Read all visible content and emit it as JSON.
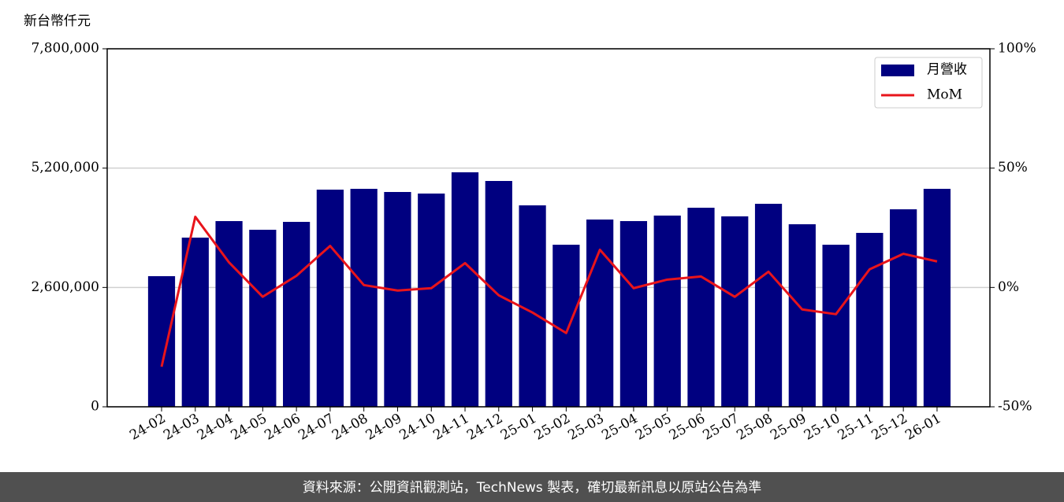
{
  "chart_data": {
    "type": "bar_line",
    "ylabel": "新台幣仟元",
    "footer": "資料來源：公開資訊觀測站，TechNews 製表，確切最新訊息以原站公告為準",
    "categories": [
      "24-02",
      "24-03",
      "24-04",
      "24-05",
      "24-06",
      "24-07",
      "24-08",
      "24-09",
      "24-10",
      "24-11",
      "24-12",
      "25-01",
      "25-02",
      "25-03",
      "25-04",
      "25-05",
      "25-06",
      "25-07",
      "25-08",
      "25-09",
      "25-10",
      "25-11",
      "25-12",
      "26-01"
    ],
    "series": [
      {
        "name": "月營收",
        "type": "bar",
        "color": "#000080",
        "values": [
          2846000,
          3686000,
          4046000,
          3857000,
          4029000,
          4731000,
          4749000,
          4680000,
          4646000,
          5109000,
          4920000,
          4389000,
          3531000,
          4080000,
          4046000,
          4166000,
          4337000,
          4149000,
          4423000,
          3977000,
          3531000,
          3789000,
          4303000,
          4749000
        ]
      },
      {
        "name": "MoM",
        "type": "line",
        "axis": "y2",
        "color": "#e8141b",
        "values": [
          -33.2,
          29.6,
          10.5,
          -3.9,
          4.9,
          17.4,
          1.0,
          -1.3,
          -0.3,
          10.2,
          -3.3,
          -10.5,
          -19.1,
          15.8,
          -0.3,
          3.3,
          4.6,
          -3.9,
          6.6,
          -9.2,
          -11.2,
          7.6,
          14.1,
          10.9
        ]
      }
    ],
    "ylim": [
      0,
      7800000
    ],
    "yticks": [
      0,
      {
        "value": 2600000,
        "label": "2,600,000"
      },
      {
        "value": 5200000,
        "label": "5,200,000"
      },
      {
        "value": 7800000,
        "label": "7,800,000"
      }
    ],
    "y2lim": [
      -50,
      100
    ],
    "y2ticks": [
      {
        "value": -50,
        "label": "-50%"
      },
      {
        "value": 0,
        "label": "0%"
      },
      {
        "value": 50,
        "label": "50%"
      },
      {
        "value": 100,
        "label": "100%"
      }
    ],
    "grid": true,
    "legend": "upper right"
  }
}
